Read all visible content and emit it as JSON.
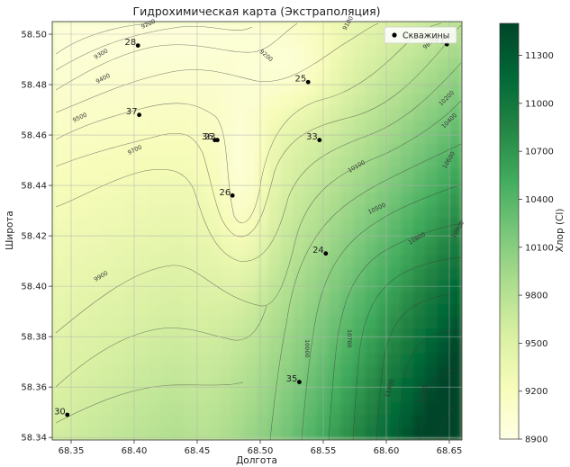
{
  "chart_data": {
    "type": "contour",
    "title": "Гидрохимическая карта (Экстраполяция)",
    "xlabel": "Долгота",
    "ylabel": "Широта",
    "xlim": [
      68.335,
      68.66
    ],
    "ylim": [
      58.339,
      58.505
    ],
    "x_ticks": [
      "68.35",
      "68.40",
      "68.45",
      "68.50",
      "68.55",
      "68.60",
      "68.65"
    ],
    "y_ticks": [
      "58.34",
      "58.36",
      "58.38",
      "58.40",
      "58.42",
      "58.44",
      "58.46",
      "58.48",
      "58.50"
    ],
    "grid": true,
    "colormap": "YlGn",
    "colorbar": {
      "label": "Хлор (Cl)",
      "min": 8900,
      "max": 11500,
      "ticks": [
        "8900",
        "9200",
        "9500",
        "9800",
        "10100",
        "10400",
        "10700",
        "11000",
        "11300"
      ]
    },
    "contour_labels": [
      "9200",
      "9300",
      "9400",
      "9500",
      "9700",
      "9900",
      "10000",
      "10100",
      "10200",
      "10400",
      "10500",
      "10600",
      "10700",
      "10800",
      "10900",
      "11000",
      "11200",
      "9100",
      "9200",
      "9800"
    ],
    "legend": {
      "label": "Скважины",
      "position": "top-right"
    },
    "wells": [
      {
        "id": "28",
        "x": 68.403,
        "y": 58.4955
      },
      {
        "id": "37",
        "x": 68.404,
        "y": 58.468
      },
      {
        "id": "36",
        "x": 68.464,
        "y": 58.458
      },
      {
        "id": "23",
        "x": 68.466,
        "y": 58.458
      },
      {
        "id": "25",
        "x": 68.538,
        "y": 58.481
      },
      {
        "id": "33",
        "x": 68.547,
        "y": 58.458
      },
      {
        "id": "26",
        "x": 68.478,
        "y": 58.436
      },
      {
        "id": "24",
        "x": 68.552,
        "y": 58.413
      },
      {
        "id": "35",
        "x": 68.531,
        "y": 58.362
      },
      {
        "id": "30",
        "x": 68.347,
        "y": 58.349
      },
      {
        "id": "31",
        "x": 68.648,
        "y": 58.496
      }
    ]
  }
}
